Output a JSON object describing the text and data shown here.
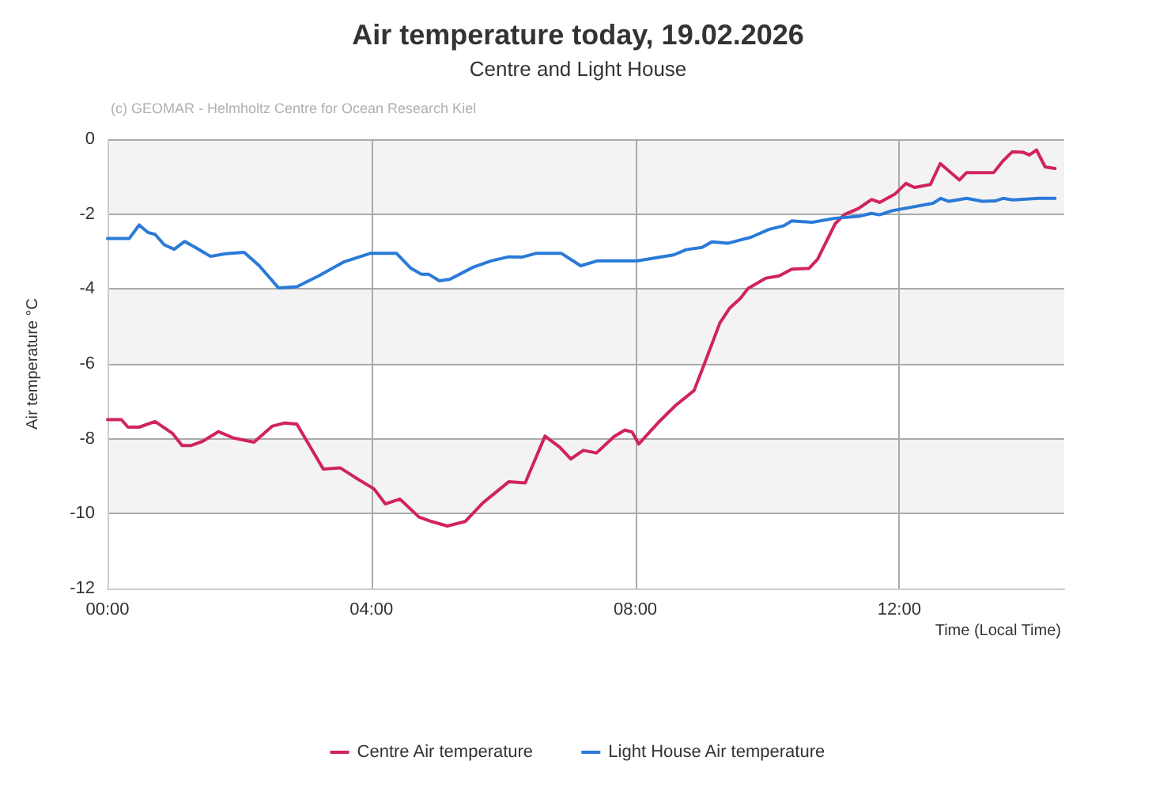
{
  "chart_data": {
    "type": "line",
    "title": "Air temperature today, 19.02.2026",
    "subtitle": "Centre and Light House",
    "xlabel": "Time (Local Time)",
    "ylabel": "Air temperature °C",
    "annotations": [
      "(c) GEOMAR - Helmholtz Centre for Ocean Research Kiel"
    ],
    "xlim": [
      0,
      14.5
    ],
    "xticks": [
      {
        "value": 0,
        "label": "00:00"
      },
      {
        "value": 4,
        "label": "04:00"
      },
      {
        "value": 8,
        "label": "08:00"
      },
      {
        "value": 12,
        "label": "12:00"
      }
    ],
    "ylim": [
      -12,
      0
    ],
    "yticks": [
      -12,
      -10,
      -8,
      -6,
      -4,
      -2,
      0
    ],
    "grid": true,
    "legend": "bottom",
    "marker": "none",
    "line_style": "solid",
    "series": [
      {
        "name": "Centre Air temperature",
        "color": "#d0245a",
        "x": [
          0,
          0.21,
          0.31,
          0.48,
          0.72,
          0.98,
          1.13,
          1.27,
          1.44,
          1.68,
          1.91,
          2.22,
          2.5,
          2.69,
          2.87,
          3.27,
          3.53,
          3.74,
          4.04,
          4.21,
          4.43,
          4.72,
          4.91,
          5.15,
          5.42,
          5.69,
          6.08,
          6.33,
          6.63,
          6.85,
          7.02,
          7.21,
          7.41,
          7.68,
          7.84,
          7.95,
          8.05,
          8.34,
          8.61,
          8.89,
          9.05,
          9.28,
          9.43,
          9.59,
          9.71,
          9.98,
          10.18,
          10.37,
          10.63,
          10.76,
          11.03,
          11.17,
          11.38,
          11.58,
          11.7,
          11.93,
          12.1,
          12.23,
          12.47,
          12.62,
          12.91,
          13.02,
          13.43,
          13.57,
          13.71,
          13.88,
          13.97,
          14.08,
          14.21,
          14.36
        ],
        "values": [
          -7.49,
          -7.49,
          -7.69,
          -7.69,
          -7.54,
          -7.85,
          -8.18,
          -8.18,
          -8.07,
          -7.81,
          -7.98,
          -8.09,
          -7.66,
          -7.58,
          -7.61,
          -8.81,
          -8.78,
          -9.02,
          -9.34,
          -9.74,
          -9.61,
          -10.09,
          -10.21,
          -10.33,
          -10.21,
          -9.71,
          -9.15,
          -9.18,
          -7.93,
          -8.22,
          -8.54,
          -8.31,
          -8.38,
          -7.94,
          -7.77,
          -7.82,
          -8.14,
          -7.58,
          -7.11,
          -6.71,
          -5.98,
          -4.91,
          -4.51,
          -4.25,
          -3.98,
          -3.71,
          -3.65,
          -3.47,
          -3.45,
          -3.21,
          -2.25,
          -2.01,
          -1.85,
          -1.61,
          -1.69,
          -1.47,
          -1.18,
          -1.29,
          -1.21,
          -0.65,
          -1.09,
          -0.89,
          -0.89,
          -0.58,
          -0.34,
          -0.35,
          -0.42,
          -0.29,
          -0.74,
          -0.78
        ]
      },
      {
        "name": "Light House Air temperature",
        "color": "#2a7ad8",
        "x": [
          0,
          0.33,
          0.48,
          0.61,
          0.72,
          0.86,
          1.01,
          1.17,
          1.33,
          1.56,
          1.79,
          2.07,
          2.3,
          2.59,
          2.87,
          3.2,
          3.59,
          3.98,
          4.38,
          4.6,
          4.76,
          4.87,
          5.03,
          5.19,
          5.54,
          5.81,
          6.08,
          6.28,
          6.49,
          6.88,
          7.17,
          7.42,
          8.03,
          8.58,
          8.77,
          9.01,
          9.16,
          9.4,
          9.59,
          9.75,
          10.02,
          10.25,
          10.37,
          10.68,
          11.03,
          11.38,
          11.58,
          11.7,
          11.89,
          12.51,
          12.63,
          12.75,
          13.02,
          13.26,
          13.45,
          13.57,
          13.72,
          14.11,
          14.36
        ],
        "values": [
          -2.65,
          -2.65,
          -2.29,
          -2.49,
          -2.54,
          -2.82,
          -2.94,
          -2.73,
          -2.89,
          -3.13,
          -3.06,
          -3.02,
          -3.38,
          -3.97,
          -3.94,
          -3.65,
          -3.27,
          -3.05,
          -3.05,
          -3.45,
          -3.61,
          -3.61,
          -3.78,
          -3.74,
          -3.42,
          -3.25,
          -3.14,
          -3.15,
          -3.05,
          -3.05,
          -3.38,
          -3.25,
          -3.25,
          -3.09,
          -2.95,
          -2.89,
          -2.74,
          -2.78,
          -2.69,
          -2.62,
          -2.41,
          -2.31,
          -2.18,
          -2.22,
          -2.11,
          -2.06,
          -1.98,
          -2.02,
          -1.91,
          -1.71,
          -1.58,
          -1.66,
          -1.58,
          -1.66,
          -1.65,
          -1.58,
          -1.62,
          -1.58,
          -1.58
        ]
      }
    ]
  }
}
